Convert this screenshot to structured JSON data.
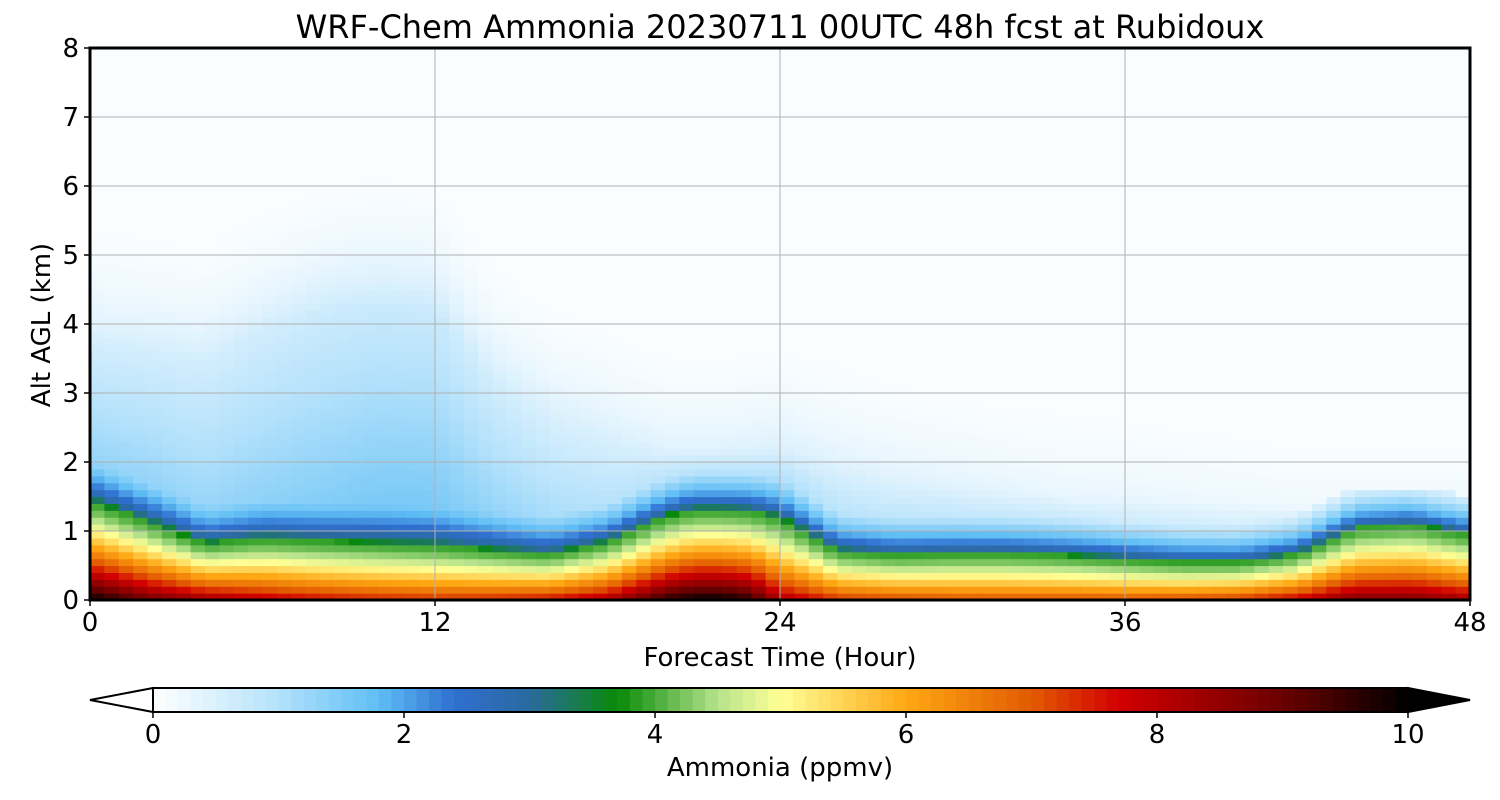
{
  "chart_data": {
    "type": "heatmap",
    "title": "WRF-Chem Ammonia  20230711 00UTC 48h fcst at Rubidoux",
    "xlabel": "Forecast Time (Hour)",
    "ylabel": "Alt AGL (km)",
    "xlim": [
      0,
      48
    ],
    "ylim": [
      0,
      8
    ],
    "xticks": [
      "0",
      "12",
      "24",
      "36",
      "48"
    ],
    "yticks": [
      "0",
      "1",
      "2",
      "3",
      "4",
      "5",
      "6",
      "7",
      "8"
    ],
    "grid": true,
    "colorbar": {
      "label": "Ammonia  (ppmv)",
      "range": [
        0,
        10
      ],
      "ticks": [
        "0",
        "2",
        "4",
        "6",
        "8",
        "10"
      ],
      "extend": "both",
      "colors": [
        {
          "value": 0,
          "color": "#ffffff"
        },
        {
          "value": 1,
          "color": "#b3e1fb"
        },
        {
          "value": 1.8,
          "color": "#5fbef5"
        },
        {
          "value": 2.4,
          "color": "#2f6fd0"
        },
        {
          "value": 3.0,
          "color": "#2a6aa0"
        },
        {
          "value": 3.7,
          "color": "#078a07"
        },
        {
          "value": 4.5,
          "color": "#b5e28c"
        },
        {
          "value": 5.0,
          "color": "#ffff96"
        },
        {
          "value": 6.0,
          "color": "#ffa814"
        },
        {
          "value": 7.0,
          "color": "#e25a00"
        },
        {
          "value": 7.7,
          "color": "#d20000"
        },
        {
          "value": 9.0,
          "color": "#6a0000"
        },
        {
          "value": 10,
          "color": "#000000"
        }
      ]
    },
    "hours": [
      0,
      2,
      4,
      6,
      8,
      10,
      12,
      14,
      16,
      18,
      20,
      21,
      22,
      23,
      24,
      26,
      28,
      30,
      32,
      34,
      36,
      38,
      40,
      42,
      44,
      46,
      48
    ],
    "surface_ppmv": [
      10,
      9.0,
      8.4,
      8.0,
      7.7,
      7.5,
      7.4,
      7.5,
      7.7,
      8.2,
      9.6,
      10,
      10,
      9.6,
      8.2,
      7.4,
      7.2,
      7.1,
      7.1,
      7.1,
      7.1,
      7.2,
      7.4,
      7.9,
      8.8,
      8.8,
      8.3
    ],
    "mixing_depth_km": [
      1.45,
      1.15,
      0.82,
      0.9,
      0.86,
      0.83,
      0.8,
      0.73,
      0.67,
      0.85,
      1.22,
      1.32,
      1.32,
      1.3,
      1.2,
      0.72,
      0.66,
      0.68,
      0.68,
      0.65,
      0.6,
      0.55,
      0.55,
      0.67,
      1.05,
      1.1,
      0.95
    ],
    "aloft_ppmv": [
      1.3,
      1.3,
      1.25,
      1.35,
      1.45,
      1.55,
      1.55,
      1.3,
      1.1,
      0.95,
      0.9,
      0.9,
      0.9,
      0.95,
      1.05,
      0.9,
      0.85,
      0.8,
      0.75,
      0.7,
      0.65,
      0.6,
      0.55,
      0.5,
      0.5,
      0.5,
      0.5
    ],
    "aloft_top_km": [
      3.7,
      3.6,
      3.5,
      3.9,
      4.2,
      4.3,
      4.2,
      3.2,
      2.7,
      2.5,
      2.2,
      2.2,
      2.2,
      2.2,
      2.2,
      2.0,
      1.8,
      1.7,
      1.6,
      1.5,
      1.5,
      1.45,
      1.4,
      1.35,
      1.35,
      1.35,
      1.35
    ]
  }
}
